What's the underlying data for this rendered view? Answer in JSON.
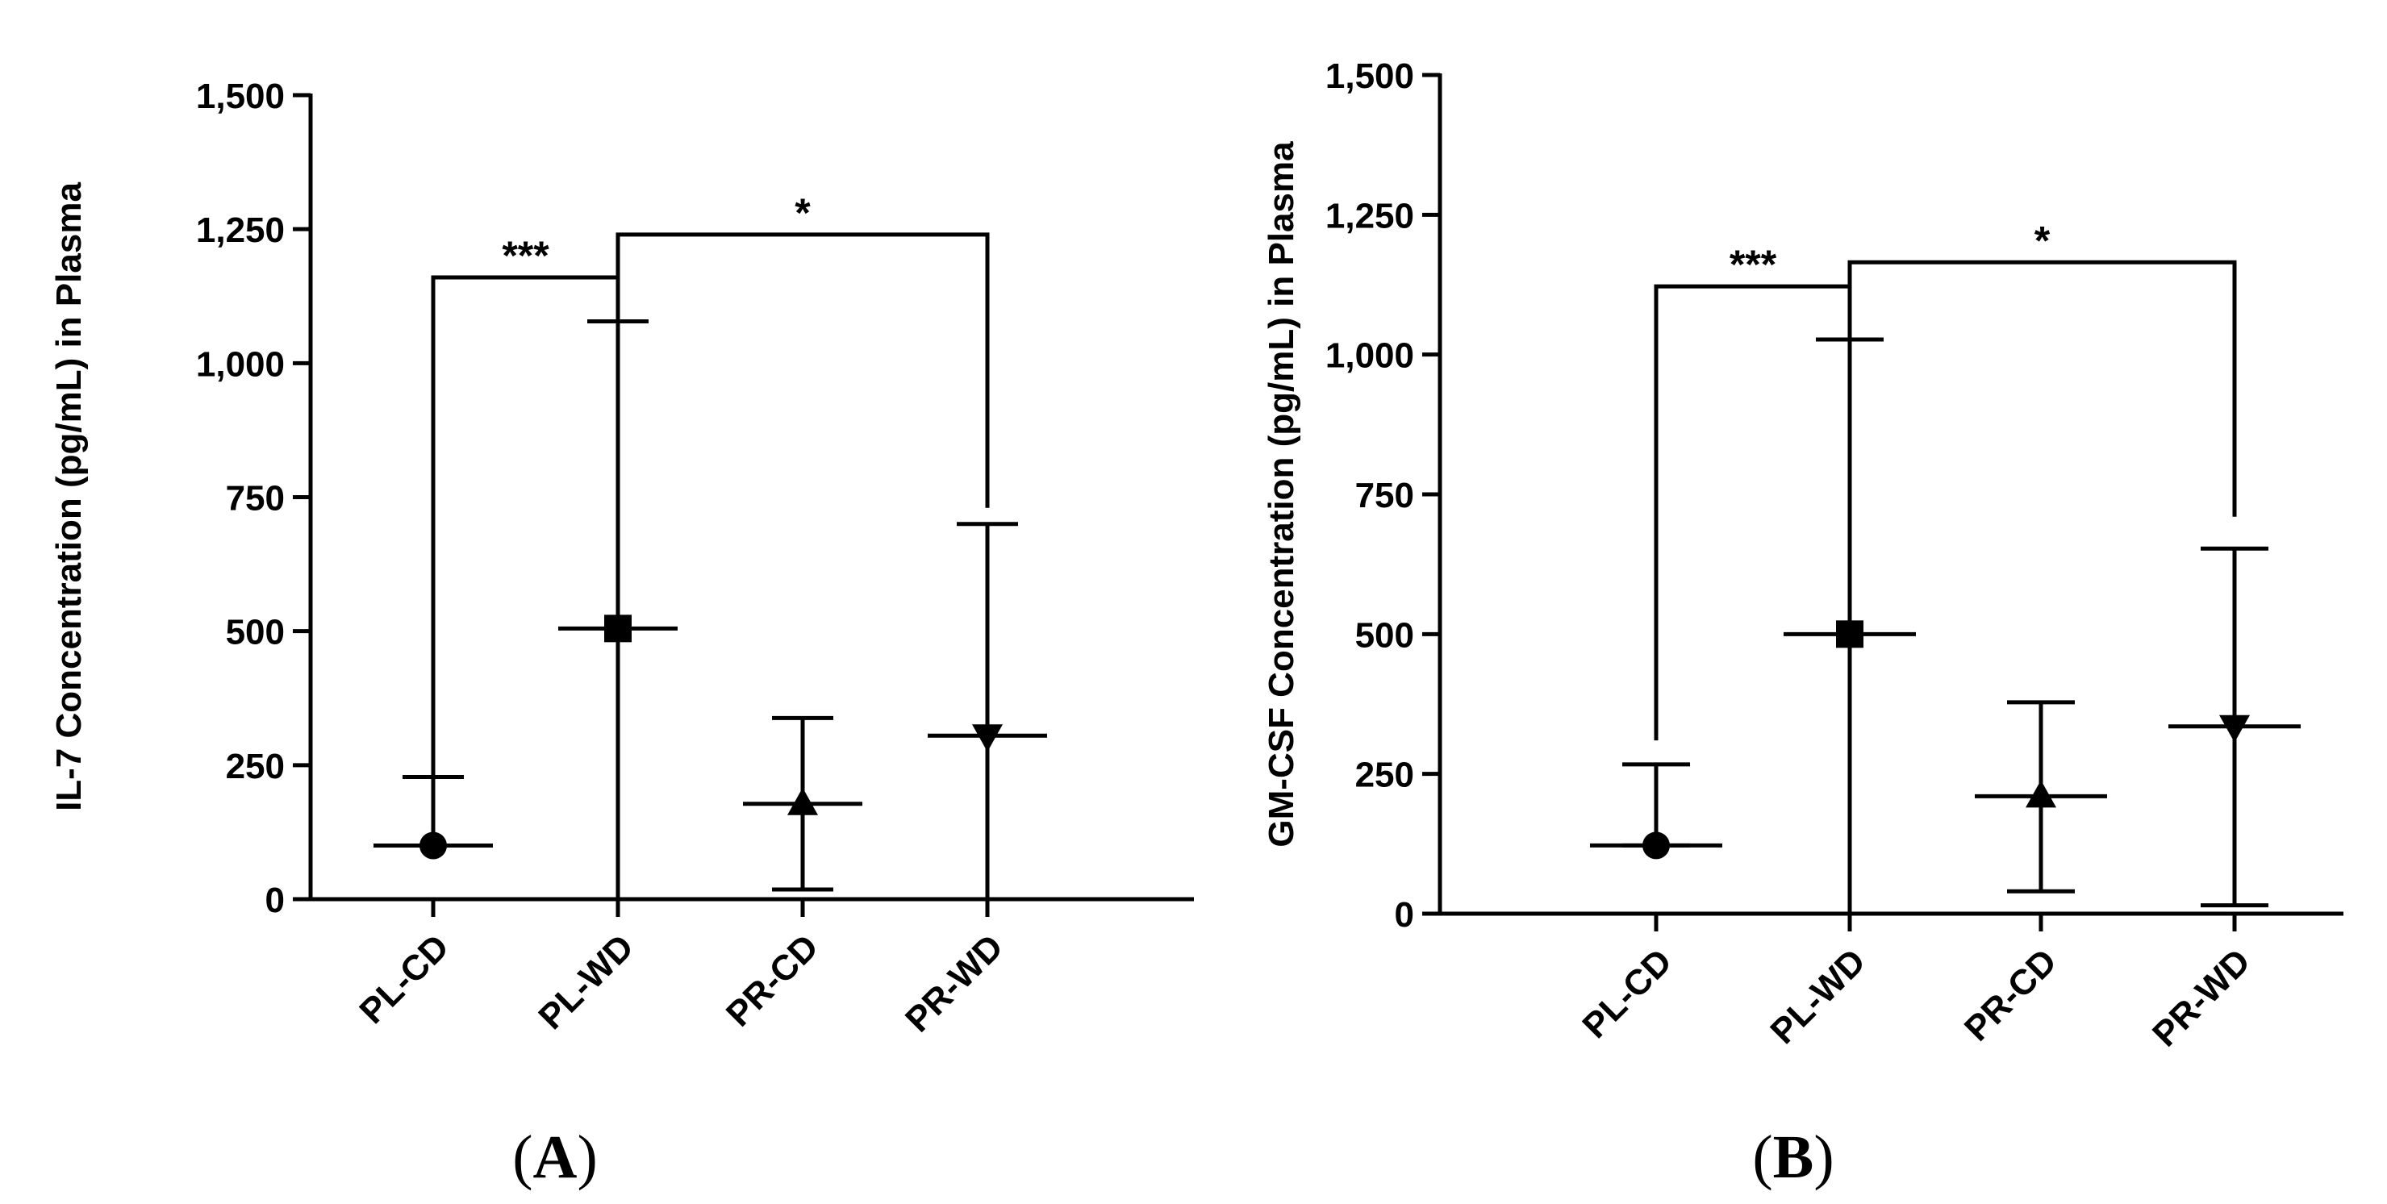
{
  "chart_data": [
    {
      "type": "scatter",
      "panel_label": "A",
      "ylabel": "IL-7 Concentration (pg/mL) in Plasma",
      "xlabel": "",
      "ylim": [
        0,
        1500
      ],
      "yticks": [
        0,
        250,
        500,
        750,
        1000,
        1250,
        1500
      ],
      "ytick_labels": [
        "0",
        "250",
        "500",
        "750",
        "1,000",
        "1,250",
        "1,500"
      ],
      "categories": [
        "PL-CD",
        "PL-WD",
        "PR-CD",
        "PR-WD"
      ],
      "markers": [
        "circle",
        "square",
        "triangle-up",
        "triangle-down"
      ],
      "median": [
        100,
        505,
        178,
        305
      ],
      "upper": [
        228,
        1078,
        338,
        700
      ],
      "lower": [
        100,
        0,
        18,
        0
      ],
      "significance": [
        {
          "from": 0,
          "to": 1,
          "label": "***",
          "bracket_y": 1160,
          "left_end": 228,
          "right_end": 1078
        },
        {
          "from": 1,
          "to": 3,
          "label": "*",
          "bracket_y": 1240,
          "left_end": 1078,
          "right_end": 730
        }
      ]
    },
    {
      "type": "scatter",
      "panel_label": "B",
      "ylabel": "GM-CSF Concentration (pg/mL) in Plasma",
      "xlabel": "",
      "ylim": [
        0,
        1500
      ],
      "yticks": [
        0,
        250,
        500,
        750,
        1000,
        1250,
        1500
      ],
      "ytick_labels": [
        "0",
        "250",
        "500",
        "750",
        "1,000",
        "1,250",
        "1,500"
      ],
      "categories": [
        "PL-CD",
        "PL-WD",
        "PR-CD",
        "PR-WD"
      ],
      "markers": [
        "circle",
        "square",
        "triangle-up",
        "triangle-down"
      ],
      "median": [
        122,
        500,
        210,
        335
      ],
      "upper": [
        267,
        1027,
        378,
        653
      ],
      "lower": [
        122,
        0,
        40,
        15
      ],
      "significance": [
        {
          "from": 0,
          "to": 1,
          "label": "***",
          "bracket_y": 1122,
          "left_end": 310,
          "right_end": 1027
        },
        {
          "from": 1,
          "to": 3,
          "label": "*",
          "bracket_y": 1165,
          "left_end": 1027,
          "right_end": 710
        }
      ]
    }
  ]
}
